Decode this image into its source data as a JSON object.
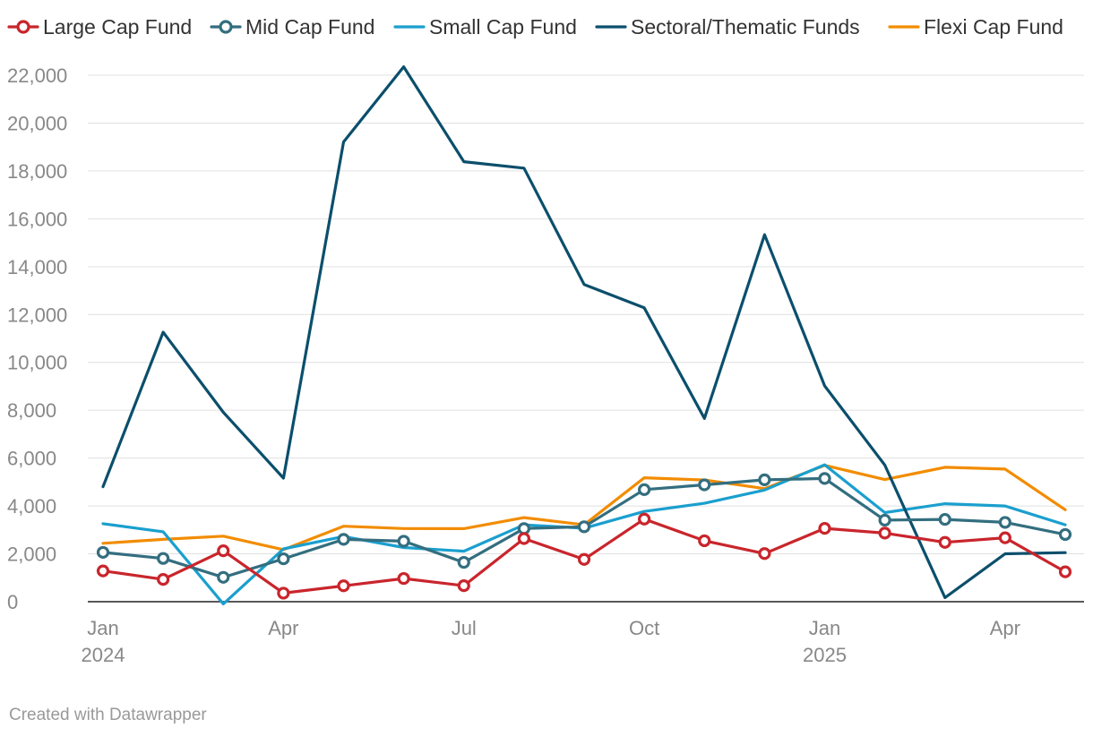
{
  "chart_data": {
    "type": "line",
    "title": "",
    "xlabel": "",
    "ylabel": "",
    "ylim": [
      0,
      22000
    ],
    "yticks": [
      0,
      2000,
      4000,
      6000,
      8000,
      10000,
      12000,
      14000,
      16000,
      18000,
      20000,
      22000
    ],
    "ytick_labels": [
      "0",
      "2,000",
      "4,000",
      "6,000",
      "8,000",
      "10,000",
      "12,000",
      "14,000",
      "16,000",
      "18,000",
      "20,000",
      "22,000"
    ],
    "x": [
      "2024-01",
      "2024-02",
      "2024-03",
      "2024-04",
      "2024-05",
      "2024-06",
      "2024-07",
      "2024-08",
      "2024-09",
      "2024-10",
      "2024-11",
      "2024-12",
      "2025-01",
      "2025-02",
      "2025-03",
      "2025-04",
      "2025-05"
    ],
    "xticks": [
      {
        "index": 0,
        "label": "Jan",
        "sublabel": "2024"
      },
      {
        "index": 3,
        "label": "Apr",
        "sublabel": ""
      },
      {
        "index": 6,
        "label": "Jul",
        "sublabel": ""
      },
      {
        "index": 9,
        "label": "Oct",
        "sublabel": ""
      },
      {
        "index": 12,
        "label": "Jan",
        "sublabel": "2025"
      },
      {
        "index": 15,
        "label": "Apr",
        "sublabel": ""
      }
    ],
    "grid": true,
    "legend_position": "top",
    "series": [
      {
        "name": "Large Cap Fund",
        "color": "#c9252c",
        "markers": true,
        "values": [
          1287,
          932,
          2128,
          358,
          664,
          970,
          670,
          2637,
          1769,
          3452,
          2547,
          2011,
          3063,
          2866,
          2479,
          2671,
          1250
        ]
      },
      {
        "name": "Mid Cap Fund",
        "color": "#336e7f",
        "markers": true,
        "values": [
          2061,
          1808,
          1018,
          1793,
          2605,
          2528,
          1644,
          3055,
          3131,
          4683,
          4883,
          5093,
          5148,
          3407,
          3439,
          3314,
          2809
        ]
      },
      {
        "name": "Small Cap Fund",
        "color": "#1a9fce",
        "markers": false,
        "values": [
          3257,
          2922,
          -94,
          2209,
          2725,
          2263,
          2109,
          3209,
          3071,
          3772,
          4112,
          4667,
          5721,
          3722,
          4092,
          3999,
          3214
        ]
      },
      {
        "name": "Sectoral/Thematic Funds",
        "color": "#0b4f6c",
        "markers": false,
        "values": [
          4805,
          11263,
          7913,
          5163,
          19213,
          22352,
          18386,
          18117,
          13255,
          12278,
          7658,
          15332,
          9017,
          5711,
          170,
          2001,
          2052
        ]
      },
      {
        "name": "Flexi Cap Fund",
        "color": "#f28c00",
        "markers": false,
        "values": [
          2440,
          2605,
          2738,
          2173,
          3155,
          3056,
          3053,
          3513,
          3215,
          5180,
          5084,
          4727,
          5697,
          5104,
          5615,
          5542,
          3841
        ]
      }
    ]
  },
  "footer": {
    "credit": "Created with Datawrapper"
  }
}
